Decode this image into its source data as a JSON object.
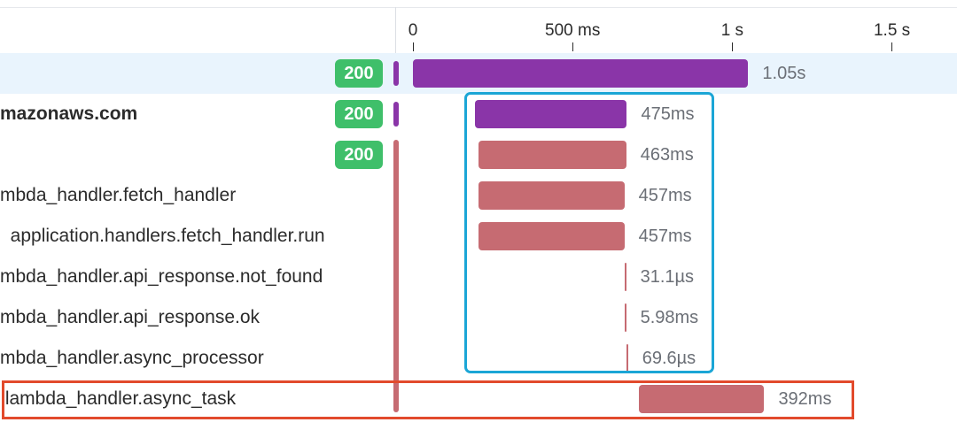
{
  "colors": {
    "service_primary": "#8a35a8",
    "service_secondary": "#c66b72",
    "status_ok": "#3fbf6a",
    "selected_row_bg": "#e9f4fd",
    "highlight_blue": "#1ba6d6",
    "highlight_red": "#e24a2c"
  },
  "timeline_axis": {
    "ticks": [
      {
        "label": "0",
        "ms": 0
      },
      {
        "label": "500 ms",
        "ms": 500
      },
      {
        "label": "1 s",
        "ms": 1000
      },
      {
        "label": "1.5 s",
        "ms": 1500
      }
    ]
  },
  "spans": [
    {
      "name": "",
      "status": "200",
      "duration": "1.05s",
      "start_ms": 0,
      "duration_ms": 1050,
      "service": "primary",
      "selected": true,
      "bold": false
    },
    {
      "name": "mazonaws.com",
      "status": "200",
      "duration": "475ms",
      "start_ms": 195,
      "duration_ms": 475,
      "service": "primary",
      "selected": false,
      "bold": true
    },
    {
      "name": "",
      "status": "200",
      "duration": "463ms",
      "start_ms": 205,
      "duration_ms": 463,
      "service": "secondary",
      "selected": false,
      "bold": false
    },
    {
      "name": "mbda_handler.fetch_handler",
      "status": "",
      "duration": "457ms",
      "start_ms": 205,
      "duration_ms": 457,
      "service": "secondary",
      "selected": false,
      "bold": false
    },
    {
      "name": "  application.handlers.fetch_handler.run",
      "status": "",
      "duration": "457ms",
      "start_ms": 205,
      "duration_ms": 457,
      "service": "secondary",
      "selected": false,
      "bold": false
    },
    {
      "name": "mbda_handler.api_response.not_found",
      "status": "",
      "duration": "31.1µs",
      "start_ms": 662,
      "duration_ms": 0.0311,
      "service": "secondary",
      "selected": false,
      "bold": false
    },
    {
      "name": "mbda_handler.api_response.ok",
      "status": "",
      "duration": "5.98ms",
      "start_ms": 662,
      "duration_ms": 5.98,
      "service": "secondary",
      "selected": false,
      "bold": false
    },
    {
      "name": "mbda_handler.async_processor",
      "status": "",
      "duration": "69.6µs",
      "start_ms": 668,
      "duration_ms": 0.0696,
      "service": "secondary",
      "selected": false,
      "bold": false
    },
    {
      "name": " lambda_handler.async_task",
      "status": "",
      "duration": "392ms",
      "start_ms": 708,
      "duration_ms": 392,
      "service": "secondary",
      "selected": false,
      "bold": false
    }
  ]
}
